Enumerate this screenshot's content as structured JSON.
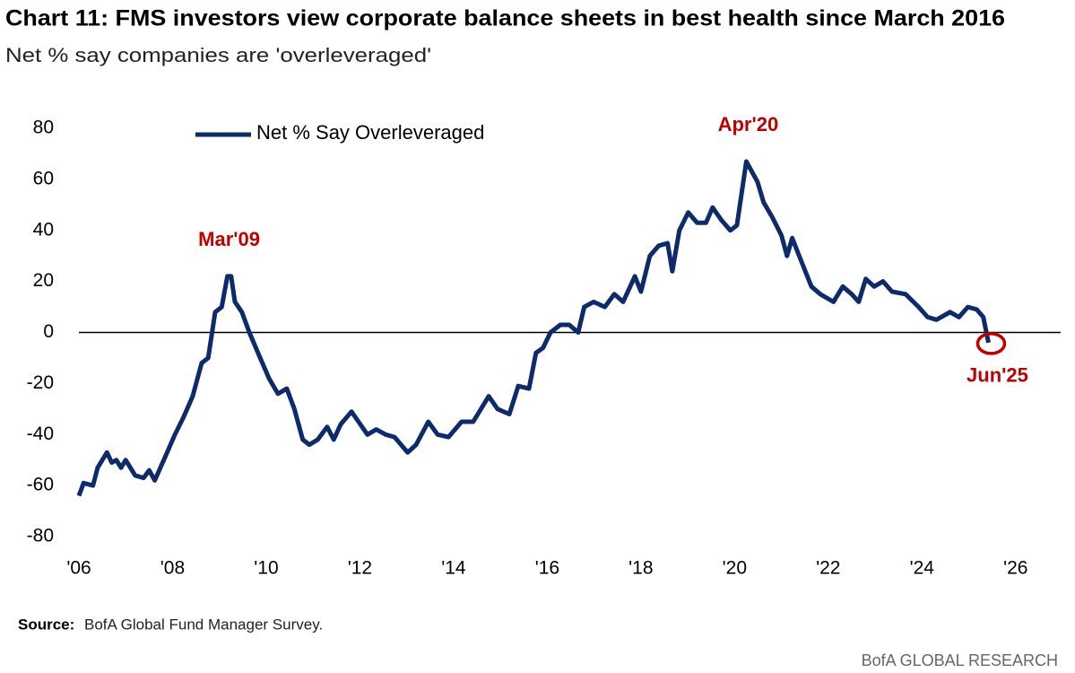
{
  "chart_data": {
    "type": "line",
    "title": "Chart 11: FMS investors view corporate balance sheets in best health since March 2016",
    "subtitle": "Net % say companies are 'overleveraged'",
    "source_label": "Source:",
    "source": "BofA Global Fund Manager Survey.",
    "branding": "BofA GLOBAL RESEARCH",
    "x": [
      2006.0,
      2006.1,
      2006.3,
      2006.4,
      2006.6,
      2006.7,
      2006.8,
      2006.9,
      2007.0,
      2007.2,
      2007.38,
      2007.5,
      2007.62,
      2007.86,
      2008.05,
      2008.24,
      2008.43,
      2008.62,
      2008.76,
      2008.91,
      2009.05,
      2009.17,
      2009.25,
      2009.33,
      2009.48,
      2009.64,
      2009.87,
      2010.06,
      2010.25,
      2010.44,
      2010.6,
      2010.78,
      2010.92,
      2011.1,
      2011.3,
      2011.44,
      2011.59,
      2011.82,
      2011.97,
      2012.16,
      2012.35,
      2012.55,
      2012.74,
      2013.02,
      2013.2,
      2013.46,
      2013.66,
      2013.89,
      2014.17,
      2014.42,
      2014.75,
      2014.94,
      2015.19,
      2015.38,
      2015.61,
      2015.76,
      2015.91,
      2016.07,
      2016.28,
      2016.47,
      2016.66,
      2016.79,
      2016.99,
      2017.23,
      2017.43,
      2017.62,
      2017.87,
      2018.0,
      2018.19,
      2018.38,
      2018.57,
      2018.67,
      2018.82,
      2019.01,
      2019.2,
      2019.39,
      2019.53,
      2019.72,
      2019.91,
      2020.05,
      2020.25,
      2020.49,
      2020.62,
      2020.81,
      2021.0,
      2021.12,
      2021.23,
      2021.4,
      2021.64,
      2021.83,
      2022.11,
      2022.31,
      2022.5,
      2022.65,
      2022.8,
      2022.98,
      2023.17,
      2023.36,
      2023.65,
      2023.93,
      2024.12,
      2024.31,
      2024.6,
      2024.79,
      2024.98,
      2025.17,
      2025.31,
      2025.42
    ],
    "series": [
      {
        "name": "Net % Say Overleveraged",
        "color": "#0d2a6b",
        "values": [
          -64,
          -59,
          -60,
          -53,
          -47,
          -51,
          -50,
          -53,
          -50,
          -56,
          -57,
          -54,
          -58,
          -48,
          -40,
          -33,
          -25,
          -12,
          -10,
          8,
          10,
          22,
          22,
          12,
          8,
          0,
          -10,
          -18,
          -24,
          -22,
          -30,
          -42,
          -44,
          -42,
          -37,
          -42,
          -36,
          -31,
          -35,
          -40,
          -38,
          -40,
          -41,
          -47,
          -44,
          -35,
          -40,
          -41,
          -35,
          -35,
          -25,
          -30,
          -32,
          -21,
          -22,
          -8,
          -6,
          0,
          3,
          3,
          0,
          10,
          12,
          10,
          15,
          12,
          22,
          16,
          30,
          34,
          35,
          24,
          40,
          47,
          43,
          43,
          49,
          44,
          40,
          42,
          67,
          59,
          51,
          45,
          38,
          30,
          37,
          29,
          18,
          15,
          12,
          18,
          15,
          12,
          21,
          18,
          20,
          16,
          15,
          10,
          6,
          5,
          8,
          6,
          10,
          9,
          6,
          -4
        ]
      }
    ],
    "xlim": [
      2006,
      2027
    ],
    "ylim": [
      -80,
      80
    ],
    "xticks": [
      {
        "value": 2006,
        "label": "'06"
      },
      {
        "value": 2008,
        "label": "'08"
      },
      {
        "value": 2010,
        "label": "'10"
      },
      {
        "value": 2012,
        "label": "'12"
      },
      {
        "value": 2014,
        "label": "'14"
      },
      {
        "value": 2016,
        "label": "'16"
      },
      {
        "value": 2018,
        "label": "'18"
      },
      {
        "value": 2020,
        "label": "'20"
      },
      {
        "value": 2022,
        "label": "'22"
      },
      {
        "value": 2024,
        "label": "'24"
      },
      {
        "value": 2026,
        "label": "'26"
      }
    ],
    "yticks": [
      -80,
      -60,
      -40,
      -20,
      0,
      20,
      40,
      60,
      80
    ],
    "annotations": [
      {
        "text": "Mar'09",
        "x": 2009.17
      },
      {
        "text": "Apr'20",
        "x": 2020.25
      },
      {
        "text": "Jun'25",
        "x": 2025.42,
        "marker": "circle"
      }
    ],
    "annotation_color": "#c00000",
    "legend": "top-left"
  }
}
